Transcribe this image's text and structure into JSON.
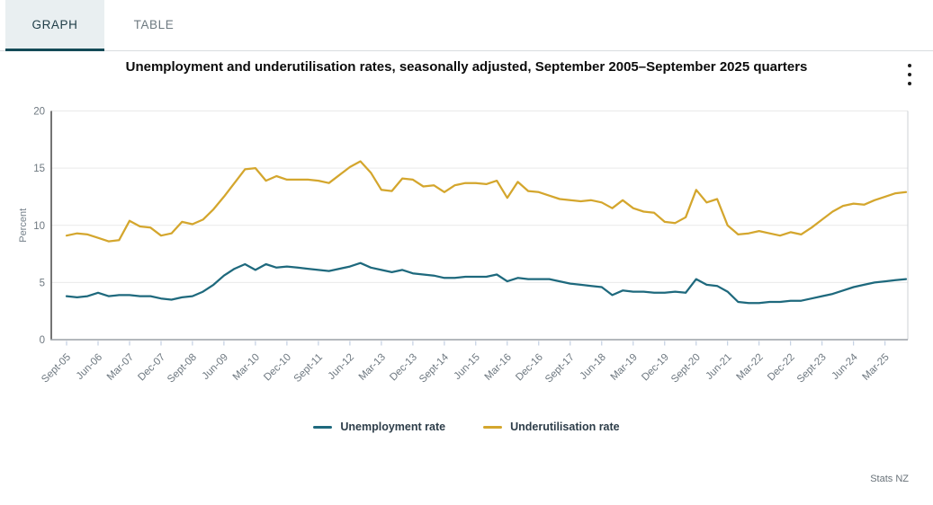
{
  "tabs": [
    {
      "label": "GRAPH",
      "active": true
    },
    {
      "label": "TABLE",
      "active": false
    }
  ],
  "title": "Unemployment and underutilisation rates, seasonally adjusted, September 2005–September 2025 quarters",
  "menu_icon": "kebab-menu",
  "footer": {
    "source": "Stats NZ"
  },
  "colors": {
    "tab_accent": "#134a57",
    "active_tab_bg": "#e9eff1",
    "unemployment_line": "#1e697d",
    "underutilisation_line": "#d4a62d"
  },
  "chart_data": {
    "type": "line",
    "title": "Unemployment and underutilisation rates, seasonally adjusted, September 2005–September 2025 quarters",
    "xlabel": "",
    "ylabel": "Percent",
    "ylim": [
      0,
      20
    ],
    "y_ticks": [
      0,
      5,
      10,
      15,
      20
    ],
    "grid": "horizontal",
    "legend_position": "bottom",
    "x_tick_every": 3,
    "x": [
      "Sept-05",
      "Dec-05",
      "Mar-06",
      "Jun-06",
      "Sept-06",
      "Dec-06",
      "Mar-07",
      "Jun-07",
      "Sept-07",
      "Dec-07",
      "Mar-08",
      "Jun-08",
      "Sept-08",
      "Dec-08",
      "Mar-09",
      "Jun-09",
      "Sept-09",
      "Dec-09",
      "Mar-10",
      "Jun-10",
      "Sept-10",
      "Dec-10",
      "Mar-11",
      "Jun-11",
      "Sept-11",
      "Dec-11",
      "Mar-12",
      "Jun-12",
      "Sept-12",
      "Dec-12",
      "Mar-13",
      "Jun-13",
      "Sept-13",
      "Dec-13",
      "Mar-14",
      "Jun-14",
      "Sept-14",
      "Dec-14",
      "Mar-15",
      "Jun-15",
      "Sept-15",
      "Dec-15",
      "Mar-16",
      "Jun-16",
      "Sept-16",
      "Dec-16",
      "Mar-17",
      "Jun-17",
      "Sept-17",
      "Dec-17",
      "Mar-18",
      "Jun-18",
      "Sept-18",
      "Dec-18",
      "Mar-19",
      "Jun-19",
      "Sept-19",
      "Dec-19",
      "Mar-20",
      "Jun-20",
      "Sept-20",
      "Dec-20",
      "Mar-21",
      "Jun-21",
      "Sept-21",
      "Dec-21",
      "Mar-22",
      "Jun-22",
      "Sept-22",
      "Dec-22",
      "Mar-23",
      "Jun-23",
      "Sept-23",
      "Dec-23",
      "Mar-24",
      "Jun-24",
      "Sept-24",
      "Dec-24",
      "Mar-25",
      "Jun-25",
      "Sept-25"
    ],
    "series": [
      {
        "name": "Unemployment rate",
        "color": "#1e697d",
        "values": [
          3.8,
          3.7,
          3.8,
          4.1,
          3.8,
          3.9,
          3.9,
          3.8,
          3.8,
          3.6,
          3.5,
          3.7,
          3.8,
          4.2,
          4.8,
          5.6,
          6.2,
          6.6,
          6.1,
          6.6,
          6.3,
          6.4,
          6.3,
          6.2,
          6.1,
          6.0,
          6.2,
          6.4,
          6.7,
          6.3,
          6.1,
          5.9,
          6.1,
          5.8,
          5.7,
          5.6,
          5.4,
          5.4,
          5.5,
          5.5,
          5.5,
          5.7,
          5.1,
          5.4,
          5.3,
          5.3,
          5.3,
          5.1,
          4.9,
          4.8,
          4.7,
          4.6,
          3.9,
          4.3,
          4.2,
          4.2,
          4.1,
          4.1,
          4.2,
          4.1,
          5.3,
          4.8,
          4.7,
          4.2,
          3.3,
          3.2,
          3.2,
          3.3,
          3.3,
          3.4,
          3.4,
          3.6,
          3.8,
          4.0,
          4.3,
          4.6,
          4.8,
          5.0,
          5.1,
          5.2,
          5.3
        ]
      },
      {
        "name": "Underutilisation rate",
        "color": "#d4a62d",
        "values": [
          9.1,
          9.3,
          9.2,
          8.9,
          8.6,
          8.7,
          10.4,
          9.9,
          9.8,
          9.1,
          9.3,
          10.3,
          10.1,
          10.5,
          11.4,
          12.5,
          13.7,
          14.9,
          15.0,
          13.9,
          14.3,
          14.0,
          14.0,
          14.0,
          13.9,
          13.7,
          14.4,
          15.1,
          15.6,
          14.6,
          13.1,
          13.0,
          14.1,
          14.0,
          13.4,
          13.5,
          12.9,
          13.5,
          13.7,
          13.7,
          13.6,
          13.9,
          12.4,
          13.8,
          13.0,
          12.9,
          12.6,
          12.3,
          12.2,
          12.1,
          12.2,
          12.0,
          11.5,
          12.2,
          11.5,
          11.2,
          11.1,
          10.3,
          10.2,
          10.7,
          13.1,
          12.0,
          12.3,
          10.0,
          9.2,
          9.3,
          9.5,
          9.3,
          9.1,
          9.4,
          9.2,
          9.8,
          10.5,
          11.2,
          11.7,
          11.9,
          11.8,
          12.2,
          12.5,
          12.8,
          12.9
        ]
      }
    ]
  }
}
